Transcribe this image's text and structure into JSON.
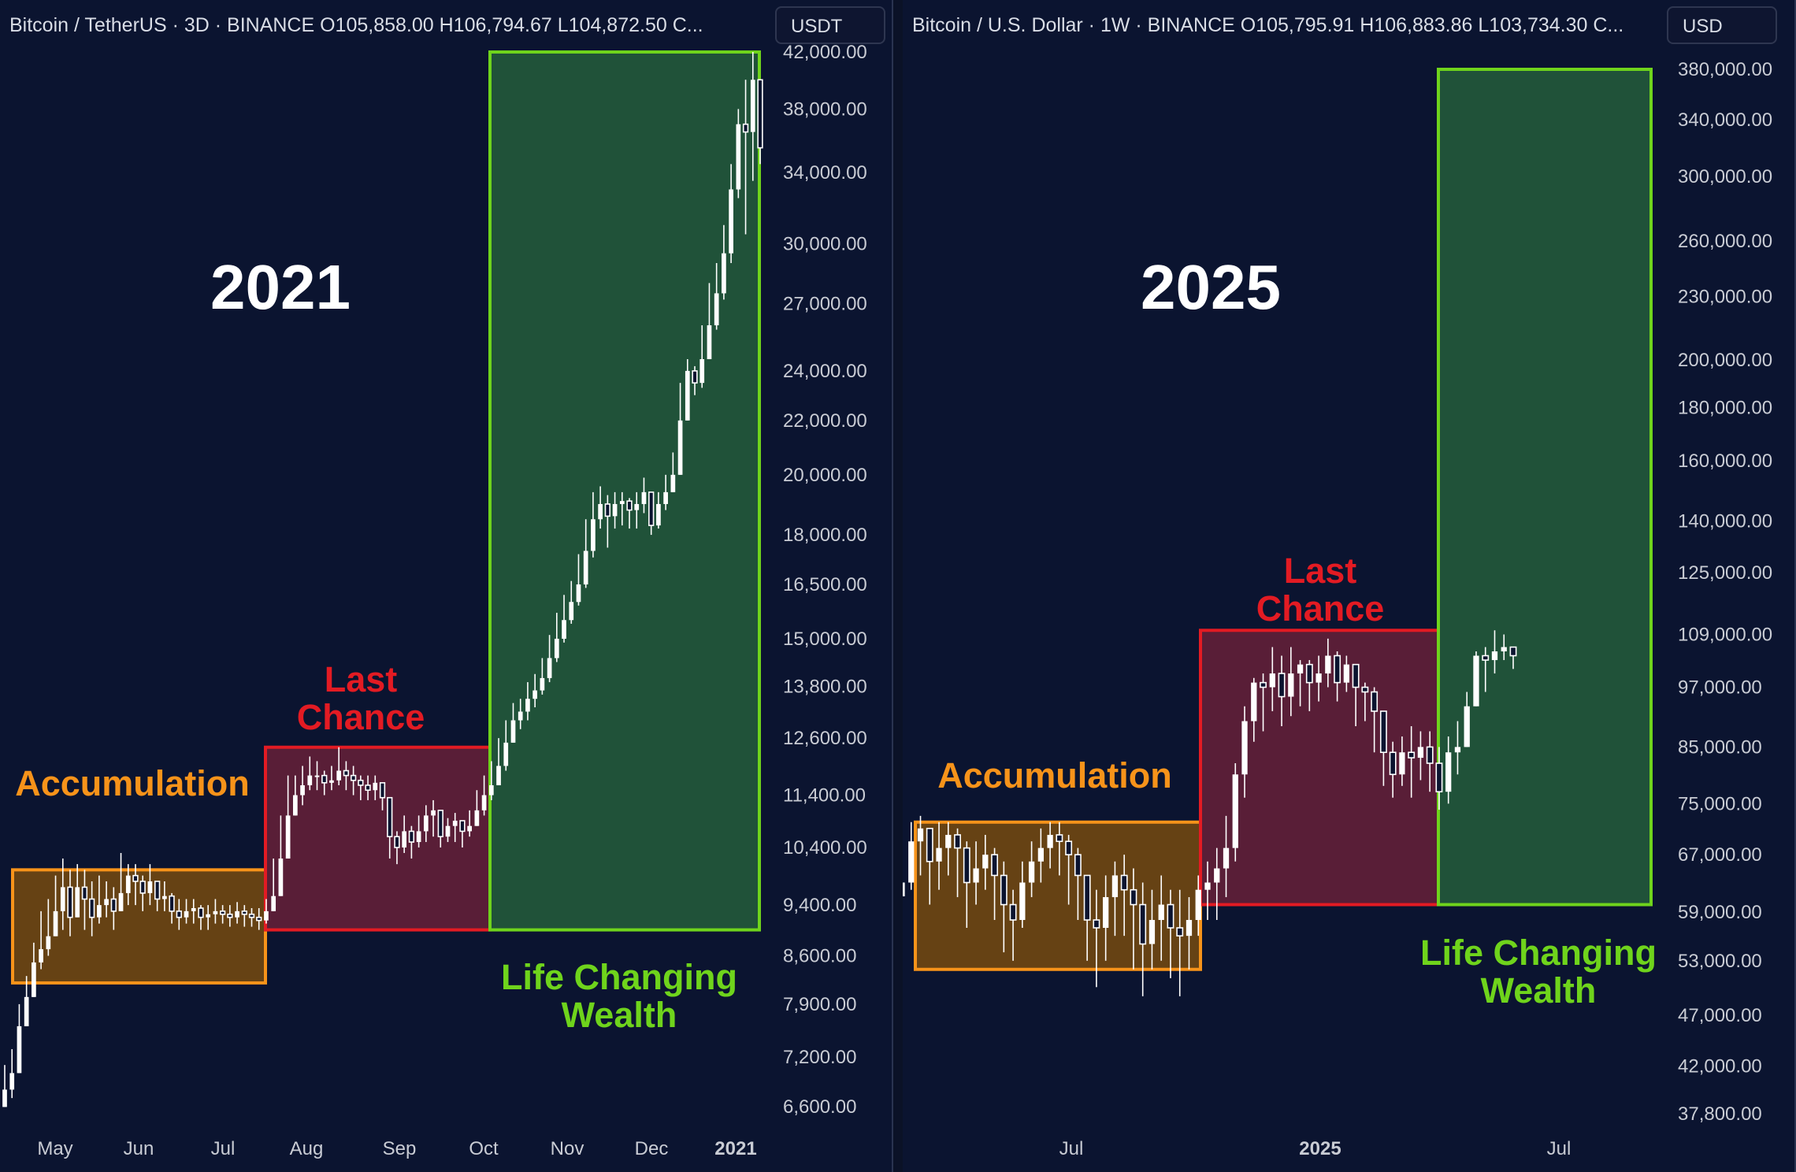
{
  "colors": {
    "background": "#0b1430",
    "accumulation_fill": "#6b4513",
    "accumulation_stroke": "#f7931a",
    "accumulation_text": "#f7931a",
    "last_chance_fill": "#5e1f38",
    "last_chance_stroke": "#e31b23",
    "last_chance_text": "#e31b23",
    "life_fill": "#22553a",
    "life_stroke": "#6fd41c",
    "life_text": "#6fd41c",
    "candle": "#ffffff"
  },
  "chart_data": [
    {
      "type": "candlestick",
      "header": "Bitcoin / TetherUS · 3D · BINANCE  O105,858.00  H106,794.67  L104,872.50  C...",
      "currency": "USDT",
      "title": "2021",
      "log_scale": true,
      "y_ticks": [
        "42,000.00",
        "38,000.00",
        "34,000.00",
        "30,000.00",
        "27,000.00",
        "24,000.00",
        "22,000.00",
        "20,000.00",
        "18,000.00",
        "16,500.00",
        "15,000.00",
        "13,800.00",
        "12,600.00",
        "11,400.00",
        "10,400.00",
        "9,400.00",
        "8,600.00",
        "7,900.00",
        "7,200.00",
        "6,600.00"
      ],
      "x_ticks": [
        "May",
        "Jun",
        "Jul",
        "Aug",
        "Sep",
        "Oct",
        "Nov",
        "Dec",
        "2021"
      ],
      "zones": [
        {
          "label": "Accumulation",
          "from": "May",
          "to": "Jul",
          "low": 8200,
          "high": 10000
        },
        {
          "label": "Last Chance",
          "from": "Jul",
          "to": "Oct",
          "low": 9000,
          "high": 12400
        },
        {
          "label": "Life Changing Wealth",
          "from": "Oct",
          "to": "Jan",
          "low": 9000,
          "high": 42000
        }
      ],
      "closes": [
        6800,
        7000,
        7600,
        8000,
        8500,
        8700,
        8900,
        9300,
        9700,
        9200,
        9700,
        9500,
        9200,
        9400,
        9500,
        9300,
        9600,
        9900,
        9800,
        9600,
        9800,
        9500,
        9550,
        9300,
        9200,
        9300,
        9350,
        9200,
        9250,
        9300,
        9250,
        9200,
        9300,
        9250,
        9200,
        9150,
        9300,
        9550,
        10200,
        11000,
        11400,
        11600,
        11800,
        11800,
        11650,
        11700,
        11900,
        11800,
        11700,
        11600,
        11500,
        11650,
        11350,
        10600,
        10400,
        10700,
        10500,
        10700,
        11000,
        11100,
        10600,
        10800,
        10900,
        10700,
        10800,
        11100,
        11400,
        11600,
        12000,
        12500,
        13000,
        13200,
        13500,
        13700,
        14000,
        14500,
        15000,
        15500,
        16000,
        16500,
        17500,
        18500,
        19000,
        18600,
        19000,
        19100,
        18800,
        19000,
        19400,
        18300,
        19000,
        19400,
        20000,
        22000,
        24000,
        23500,
        24500,
        26000,
        27500,
        29500,
        33000,
        37000,
        36500,
        40000,
        35500
      ],
      "highs": [
        7100,
        7300,
        7900,
        8300,
        8800,
        9300,
        9500,
        9900,
        10200,
        10000,
        10100,
        10000,
        9800,
        9900,
        9800,
        9700,
        10300,
        10100,
        10100,
        9900,
        10100,
        9800,
        9800,
        9600,
        9500,
        9500,
        9500,
        9400,
        9400,
        9500,
        9400,
        9400,
        9450,
        9400,
        9350,
        9350,
        9500,
        10200,
        11000,
        11800,
        11800,
        12000,
        12200,
        12100,
        11900,
        12000,
        12400,
        12100,
        12000,
        11800,
        11800,
        11800,
        11500,
        11300,
        10700,
        11000,
        10800,
        11000,
        11200,
        11300,
        11000,
        10950,
        11050,
        10900,
        11100,
        11500,
        11800,
        12100,
        12600,
        13000,
        13400,
        13500,
        13900,
        14100,
        14500,
        15100,
        15700,
        16200,
        16600,
        17400,
        18500,
        19400,
        19600,
        19300,
        19400,
        19400,
        19200,
        19400,
        19900,
        19200,
        19400,
        20000,
        20800,
        23500,
        24500,
        24200,
        26000,
        28000,
        29000,
        31000,
        34500,
        38000,
        40000,
        42000,
        39500
      ],
      "lows": [
        6600,
        6700,
        7100,
        7700,
        8000,
        8400,
        8600,
        8900,
        9000,
        8900,
        9200,
        9000,
        8900,
        9100,
        9200,
        9000,
        9300,
        9400,
        9400,
        9300,
        9400,
        9300,
        9300,
        9100,
        9000,
        9100,
        9100,
        9000,
        9000,
        9100,
        9100,
        9050,
        9100,
        9050,
        9050,
        9000,
        9100,
        9300,
        9800,
        10400,
        11000,
        11200,
        11500,
        11500,
        11400,
        11500,
        11600,
        11500,
        11400,
        11300,
        11300,
        11300,
        11100,
        10200,
        10100,
        10300,
        10200,
        10400,
        10500,
        10600,
        10400,
        10500,
        10500,
        10400,
        10600,
        10800,
        11000,
        11300,
        11600,
        11900,
        12500,
        12800,
        13000,
        13300,
        13600,
        13900,
        14400,
        14900,
        15400,
        15900,
        16400,
        17300,
        18200,
        17600,
        18200,
        18300,
        18200,
        18200,
        18700,
        18000,
        18200,
        18800,
        19500,
        21000,
        23000,
        23000,
        23300,
        24500,
        25800,
        27200,
        29000,
        32500,
        30500,
        33500,
        34500
      ]
    },
    {
      "type": "candlestick",
      "header": "Bitcoin / U.S. Dollar · 1W · BINANCE  O105,795.91  H106,883.86  L103,734.30  C...",
      "currency": "USD",
      "title": "2025",
      "log_scale": true,
      "y_ticks": [
        "380,000.00",
        "340,000.00",
        "300,000.00",
        "260,000.00",
        "230,000.00",
        "200,000.00",
        "180,000.00",
        "160,000.00",
        "140,000.00",
        "125,000.00",
        "109,000.00",
        "97,000.00",
        "85,000.00",
        "75,000.00",
        "67,000.00",
        "59,000.00",
        "53,000.00",
        "47,000.00",
        "42,000.00",
        "37,800.00"
      ],
      "x_ticks": [
        "Jul",
        "2025",
        "Jul"
      ],
      "zones": [
        {
          "label": "Accumulation",
          "from": "Apr 2024",
          "to": "Oct 2024",
          "low": 52000,
          "high": 72000
        },
        {
          "label": "Last Chance",
          "from": "Oct 2024",
          "to": "Apr 2025",
          "low": 60000,
          "high": 110000
        },
        {
          "label": "Life Changing Wealth",
          "from": "Apr 2025",
          "to": "Oct 2025",
          "low": 60000,
          "high": 380000
        }
      ],
      "closes": [
        63000,
        69000,
        71000,
        66000,
        68000,
        70000,
        68000,
        63000,
        65000,
        67000,
        64000,
        60000,
        58000,
        63000,
        66000,
        68000,
        70000,
        69000,
        67000,
        64000,
        58000,
        57000,
        61000,
        64000,
        62000,
        60000,
        55000,
        58000,
        60000,
        57000,
        56000,
        58000,
        62000,
        63000,
        65000,
        68000,
        80000,
        90000,
        98000,
        97000,
        100000,
        95000,
        100000,
        102000,
        98000,
        100000,
        104000,
        98000,
        102000,
        97000,
        96000,
        92000,
        84000,
        80000,
        84000,
        83000,
        85000,
        82000,
        77000,
        84000,
        85000,
        93000,
        104000,
        103000,
        105000,
        106000,
        104000
      ],
      "highs": [
        67000,
        72000,
        73000,
        71000,
        72000,
        72000,
        71000,
        69000,
        69000,
        70000,
        68000,
        66000,
        62000,
        66000,
        69000,
        71000,
        72000,
        72000,
        70000,
        68000,
        64000,
        62000,
        64000,
        66000,
        67000,
        65000,
        63000,
        62000,
        64000,
        62000,
        62000,
        61000,
        64000,
        66000,
        68000,
        73000,
        82000,
        93000,
        99000,
        100000,
        106000,
        104000,
        106000,
        103000,
        103000,
        104000,
        108000,
        105000,
        104000,
        102000,
        98000,
        97000,
        92000,
        86000,
        87000,
        89000,
        88000,
        88000,
        85000,
        87000,
        90000,
        96000,
        105000,
        106000,
        110000,
        109000,
        106000
      ],
      "lows": [
        54000,
        62000,
        64000,
        60000,
        62000,
        64000,
        61000,
        57000,
        60000,
        62000,
        58000,
        54000,
        53000,
        57000,
        61000,
        63000,
        65000,
        64000,
        60000,
        58000,
        53000,
        50000,
        53000,
        56000,
        56000,
        52000,
        49000,
        52000,
        53000,
        51000,
        49000,
        52000,
        56000,
        58000,
        58000,
        61000,
        66000,
        76000,
        86000,
        88000,
        92000,
        89000,
        91000,
        93000,
        92000,
        94000,
        97000,
        94000,
        96000,
        89000,
        90000,
        84000,
        78000,
        76000,
        78000,
        76000,
        79000,
        77000,
        74000,
        75000,
        80000,
        85000,
        94000,
        96000,
        100000,
        103000,
        101000
      ]
    }
  ]
}
